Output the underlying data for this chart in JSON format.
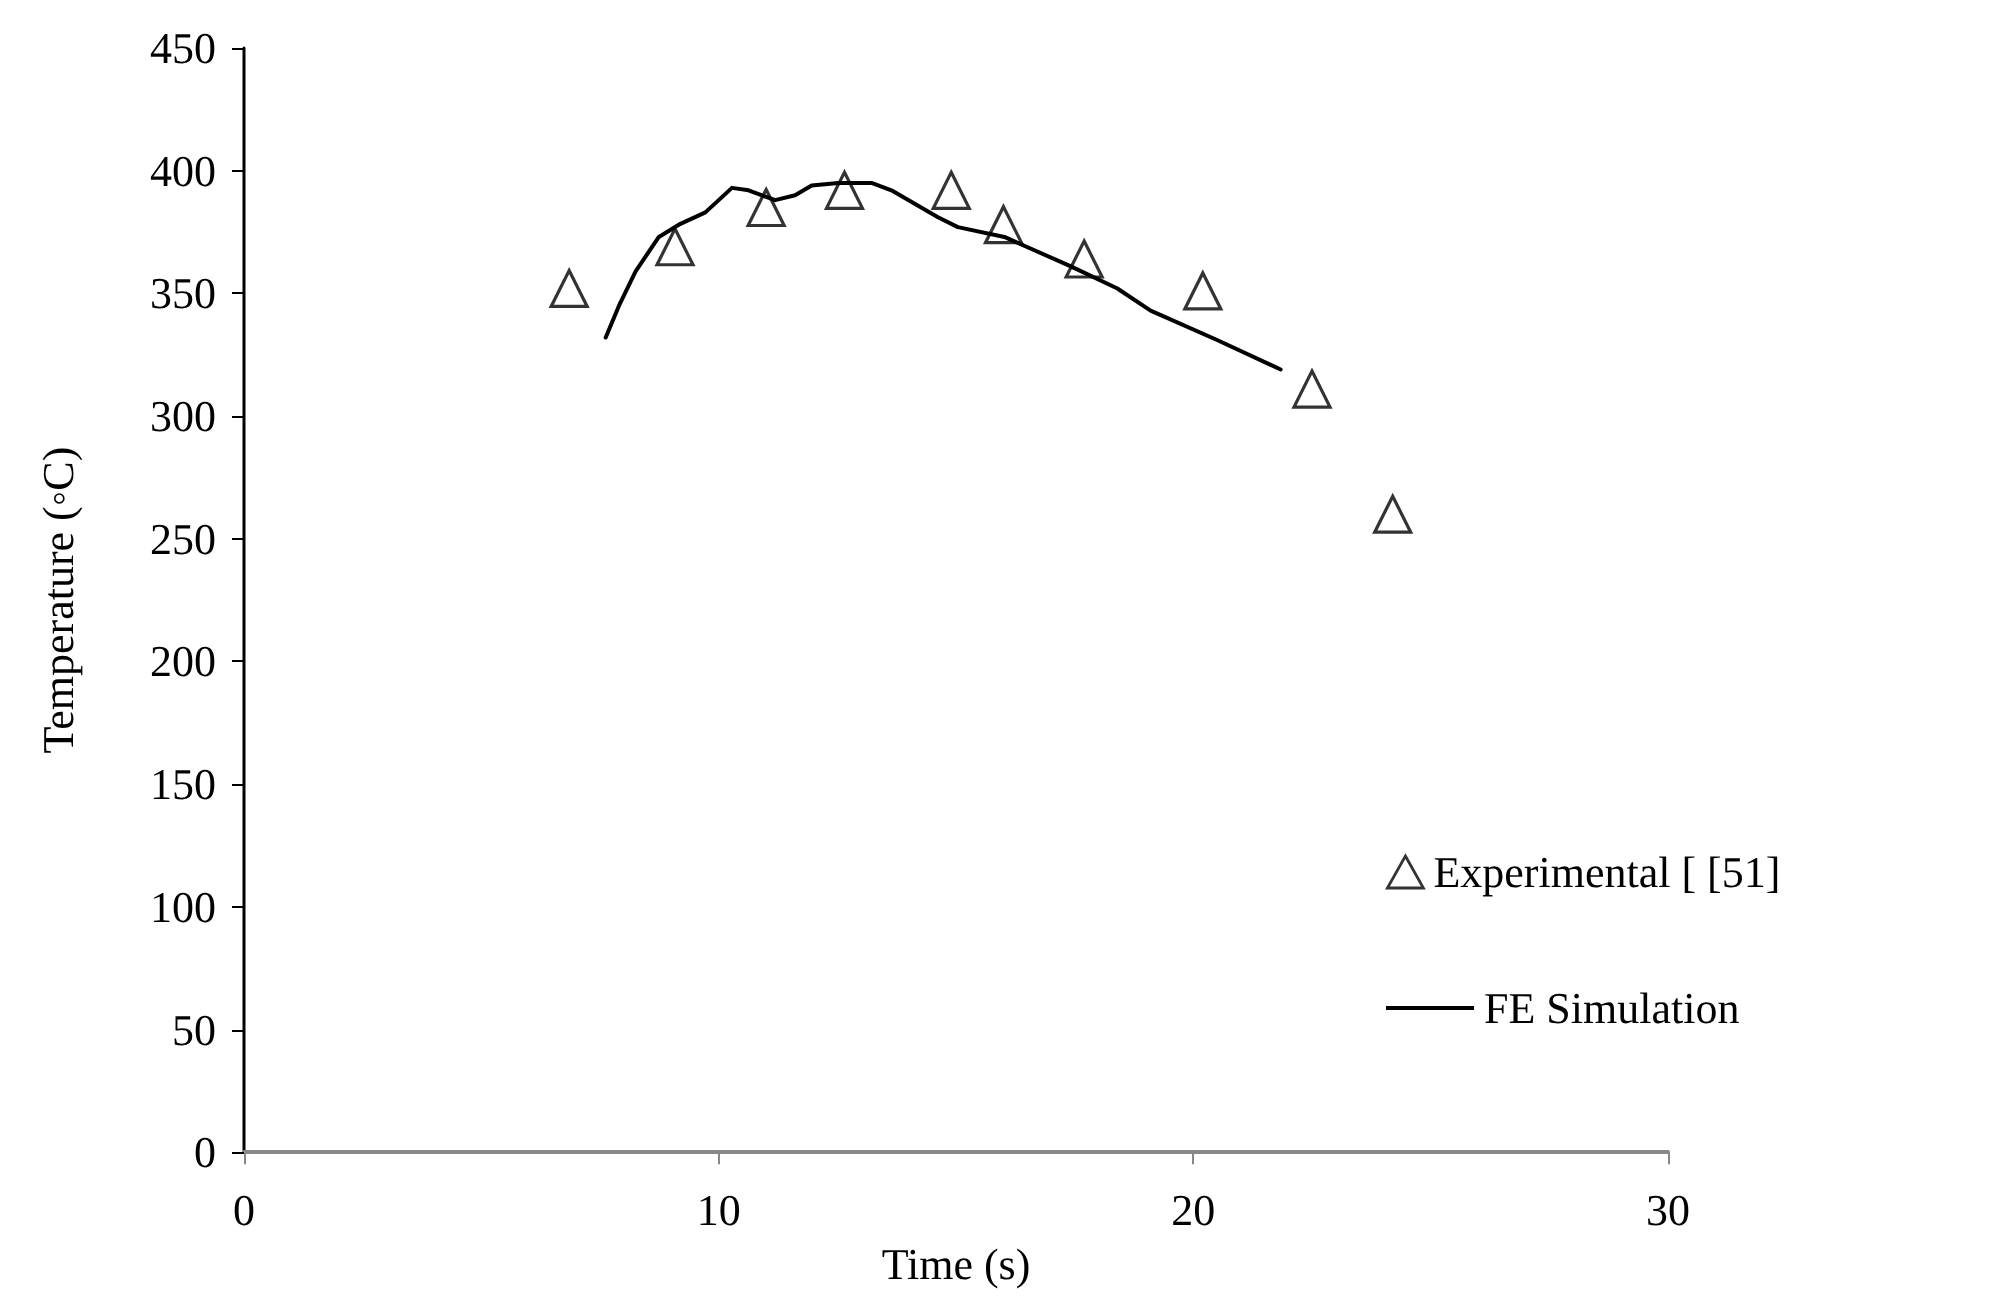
{
  "chart_data": {
    "type": "scatter",
    "xlabel": "Time (s)",
    "ylabel": "Temperature (◦C)",
    "xlim": [
      0,
      30
    ],
    "xticks": [
      0,
      10,
      20,
      30
    ],
    "ylim": [
      0,
      450
    ],
    "yticks": [
      0,
      50,
      100,
      150,
      200,
      250,
      300,
      350,
      400,
      450
    ],
    "grid": false,
    "legend": "right",
    "series": [
      {
        "name": "Experimental [ [51]",
        "marker": "triangle",
        "color": "#000000",
        "x": [
          6.85,
          9.08,
          11.0,
          12.65,
          14.9,
          16.0,
          17.7,
          20.2,
          22.5,
          24.2
        ],
        "values": [
          352,
          369,
          385,
          392,
          392,
          378,
          364,
          351,
          311,
          260
        ]
      },
      {
        "name": "FE Simulation",
        "type": "line",
        "marker": "none",
        "line_style": "solid",
        "color": "#000000",
        "x": [
          7.62,
          7.9,
          8.25,
          8.74,
          9.16,
          9.72,
          10.28,
          10.63,
          11.19,
          11.61,
          11.96,
          12.52,
          13.22,
          13.64,
          14.62,
          15.04,
          16.02,
          17.42,
          18.4,
          19.1,
          20.5,
          21.84
        ],
        "values": [
          332,
          345,
          359,
          373,
          378,
          383,
          393,
          392,
          388,
          390,
          394,
          395,
          395,
          392,
          381,
          377,
          373,
          361,
          352,
          343,
          331,
          319
        ]
      }
    ]
  }
}
